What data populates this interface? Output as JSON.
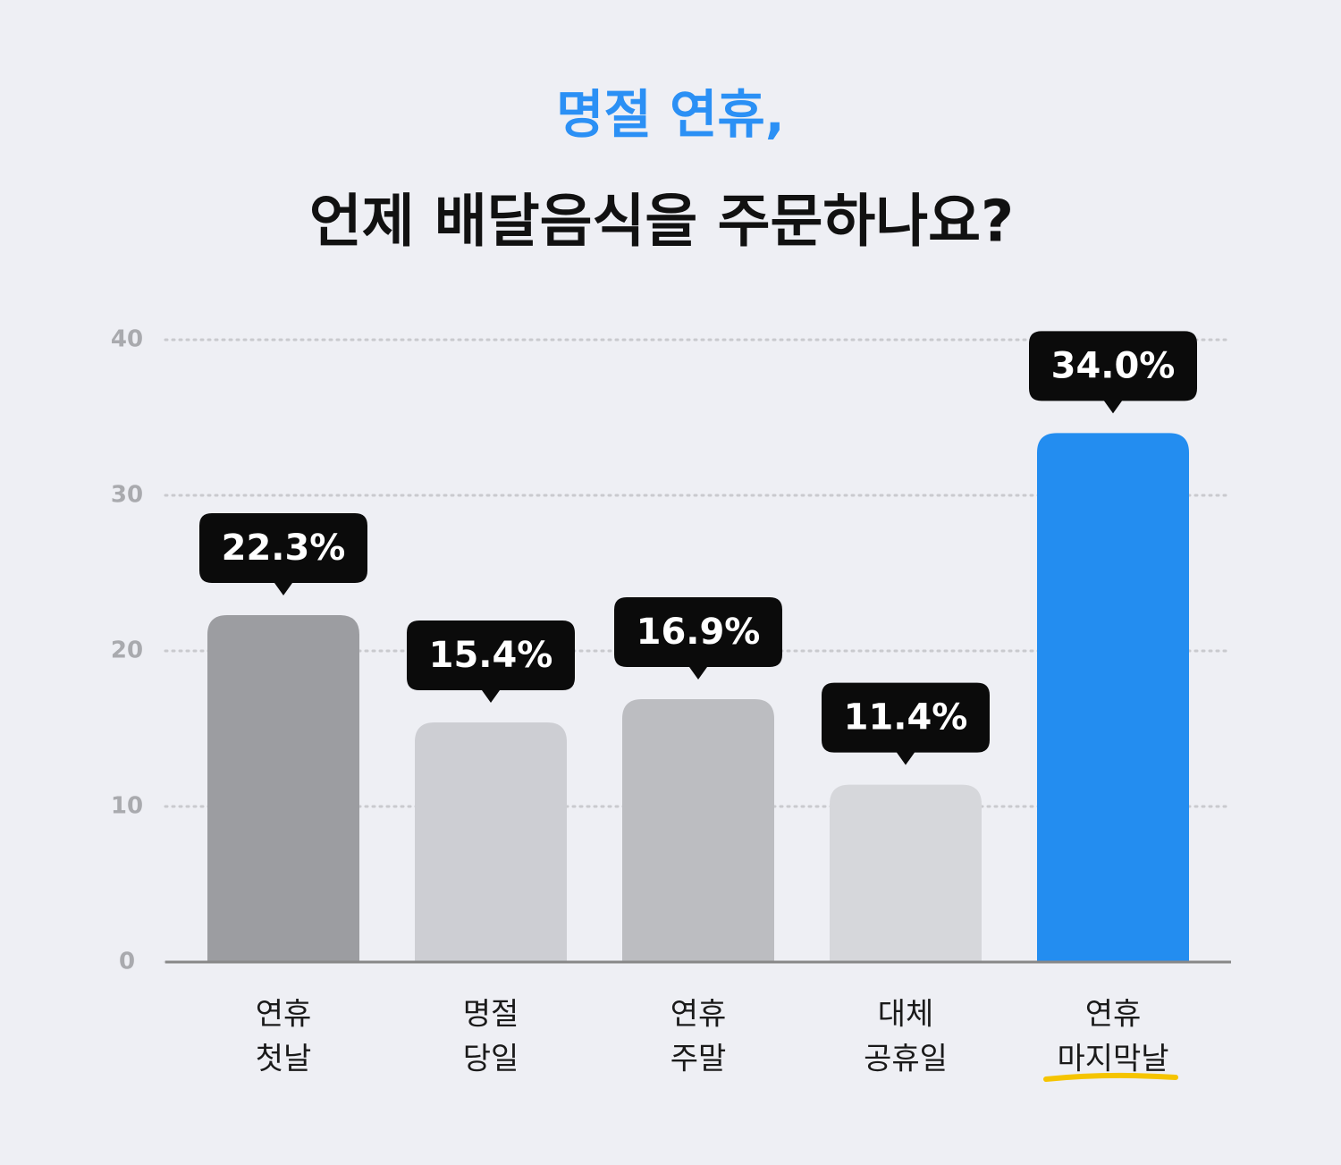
{
  "chart_data": {
    "type": "bar",
    "title": [
      "명절 연휴,",
      "언제 배달음식을 주문하나요?"
    ],
    "categories": [
      [
        "연휴",
        "첫날"
      ],
      [
        "명절",
        "당일"
      ],
      [
        "연휴",
        "주말"
      ],
      [
        "대체",
        "공휴일"
      ],
      [
        "연휴",
        "마지막날"
      ]
    ],
    "values": [
      22.3,
      15.4,
      16.9,
      11.4,
      34.0
    ],
    "value_labels": [
      "22.3%",
      "15.4%",
      "16.9%",
      "11.4%",
      "34.0%"
    ],
    "colors": [
      "#9c9da1",
      "#cdced3",
      "#bcbdc1",
      "#d6d7db",
      "#238df0"
    ],
    "ylim": [
      0,
      40
    ],
    "yticks": [
      0,
      10,
      20,
      30,
      40
    ],
    "grid": true
  }
}
